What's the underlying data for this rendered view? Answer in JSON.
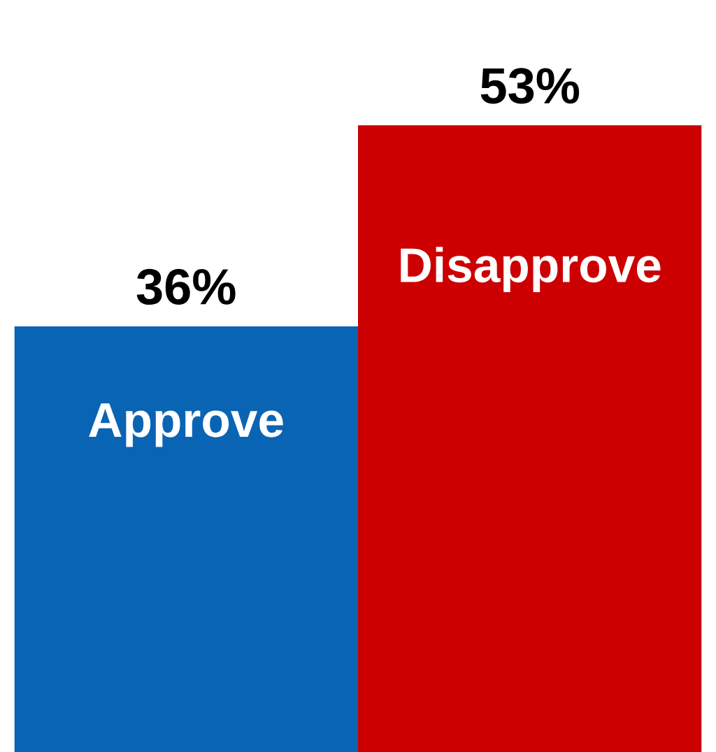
{
  "chart_data": {
    "type": "bar",
    "categories": [
      "Approve",
      "Disapprove"
    ],
    "values": [
      36,
      53
    ],
    "colors": [
      "#0a64b4",
      "#cc0000"
    ],
    "value_labels": [
      "36%",
      "53%"
    ]
  }
}
